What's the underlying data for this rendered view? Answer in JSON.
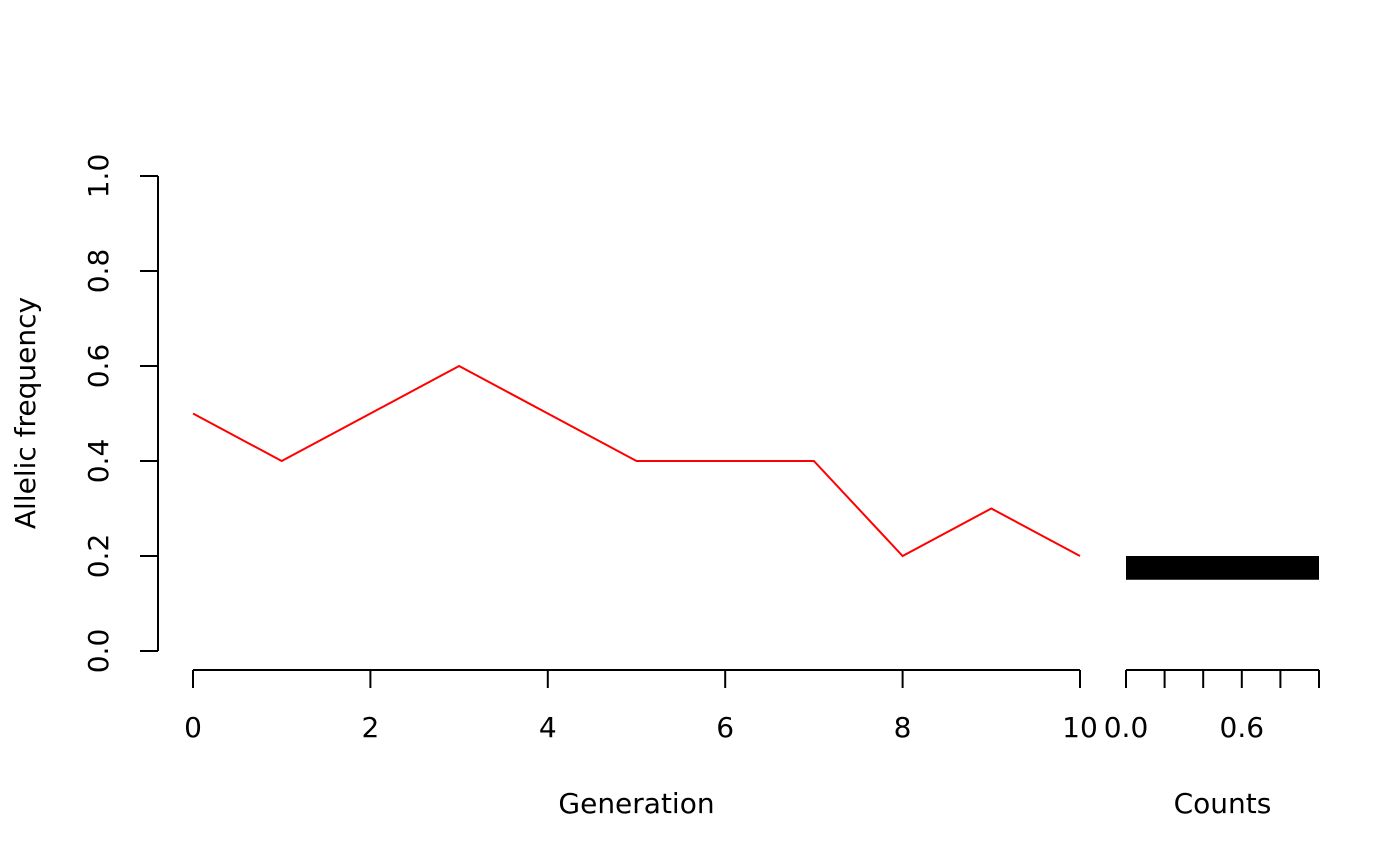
{
  "chart_data": [
    {
      "type": "line",
      "xlabel": "Generation",
      "ylabel": "Allelic frequency",
      "x": [
        0,
        1,
        2,
        3,
        4,
        5,
        6,
        7,
        8,
        9,
        10
      ],
      "values": [
        0.5,
        0.4,
        0.5,
        0.6,
        0.5,
        0.4,
        0.4,
        0.4,
        0.2,
        0.3,
        0.2
      ],
      "color": "#ff0000",
      "xlim": [
        0,
        10
      ],
      "xticks": [
        0,
        2,
        4,
        6,
        8,
        10
      ],
      "ylim": [
        0,
        1
      ],
      "yticks": [
        {
          "value": 0,
          "label": "0.0"
        },
        0.2,
        0.4,
        0.6,
        0.8,
        {
          "value": 1,
          "label": "1.0"
        }
      ]
    },
    {
      "type": "histogram",
      "orientation": "horizontal",
      "xlabel": "Counts",
      "bins": [
        0.15,
        0.2
      ],
      "values": [
        1
      ],
      "color": "#000000",
      "xlim": [
        0,
        1
      ],
      "xticks": [
        {
          "value": 0,
          "label": "0.0"
        },
        {
          "value": 0.2,
          "label": null
        },
        {
          "value": 0.4,
          "label": null
        },
        0.6,
        {
          "value": 0.8,
          "label": null
        },
        {
          "value": 1,
          "label": null
        }
      ],
      "ylim": [
        0,
        1
      ]
    }
  ]
}
